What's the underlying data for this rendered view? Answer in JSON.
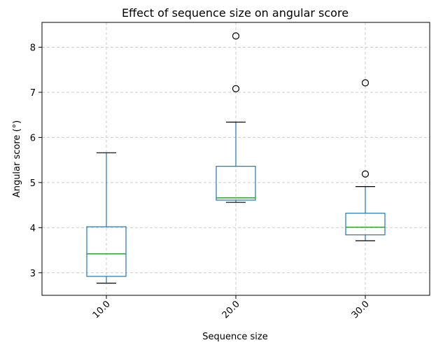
{
  "chart_data": {
    "type": "box",
    "title": "Effect of sequence size on angular score",
    "xlabel": "Sequence size",
    "ylabel": "Angular score (°)",
    "categories": [
      "10.0",
      "20.0",
      "30.0"
    ],
    "ylim": [
      2.5,
      8.55
    ],
    "yticks": [
      3,
      4,
      5,
      6,
      7,
      8
    ],
    "grid": true,
    "boxes": [
      {
        "category": "10.0",
        "whisker_low": 2.77,
        "q1": 2.92,
        "median": 3.42,
        "q3": 4.02,
        "whisker_high": 5.66,
        "outliers": []
      },
      {
        "category": "20.0",
        "whisker_low": 4.56,
        "q1": 4.61,
        "median": 4.66,
        "q3": 5.36,
        "whisker_high": 6.34,
        "outliers": [
          7.08,
          8.25
        ]
      },
      {
        "category": "30.0",
        "whisker_low": 3.71,
        "q1": 3.84,
        "median": 4.01,
        "q3": 4.32,
        "whisker_high": 4.91,
        "outliers": [
          5.19,
          7.21
        ]
      }
    ],
    "colors": {
      "box": "#1f77b4",
      "median": "#2ca02c",
      "whisker_cap": "#000000",
      "grid": "#cccccc"
    }
  }
}
